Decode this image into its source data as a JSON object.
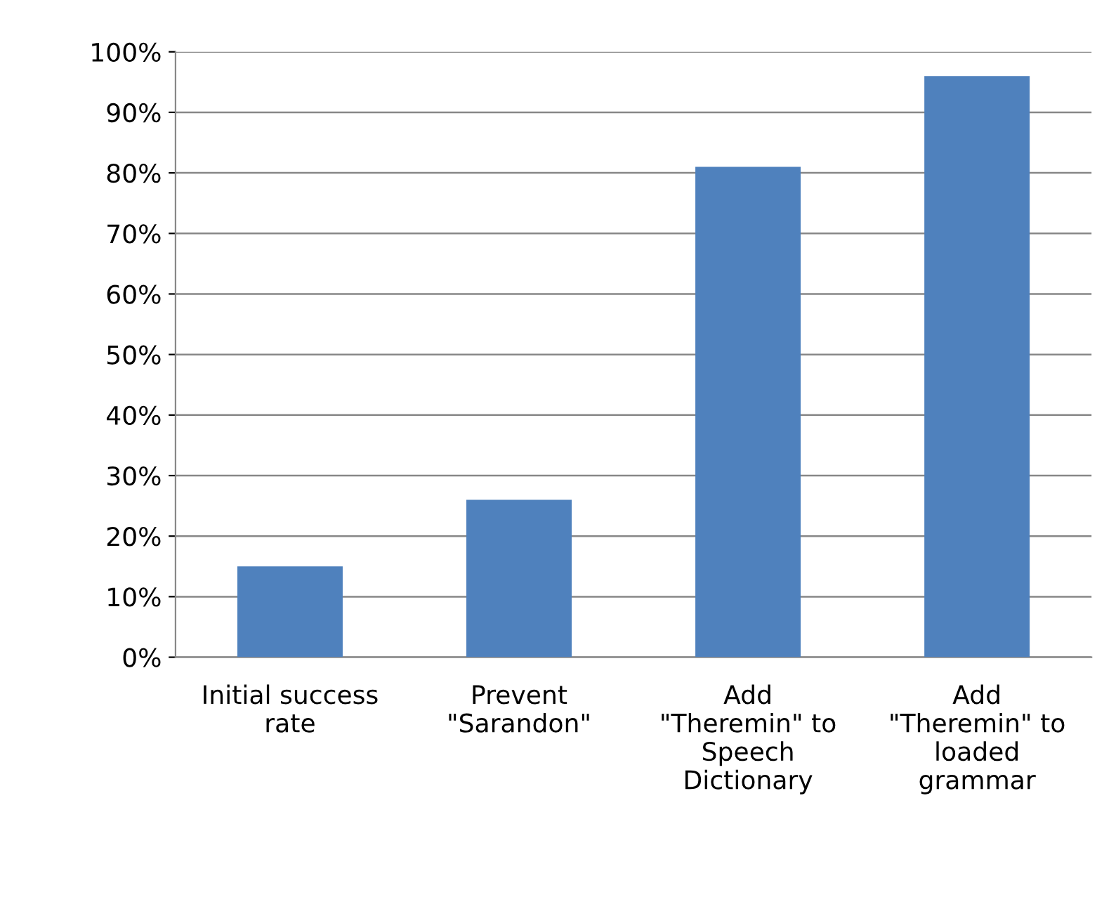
{
  "chart_data": {
    "type": "bar",
    "categories": [
      "Initial success\nrate",
      "Prevent\n\"Sarandon\"",
      "Add\n\"Theremin\" to\nSpeech\nDictionary",
      "Add\n\"Theremin\" to\nloaded\ngrammar"
    ],
    "values": [
      15,
      26,
      81,
      96
    ],
    "color": "#4f81bd",
    "ylim": [
      0,
      100
    ],
    "yticks": [
      {
        "value": 0,
        "label": "0%"
      },
      {
        "value": 10,
        "label": "10%"
      },
      {
        "value": 20,
        "label": "20%"
      },
      {
        "value": 30,
        "label": "30%"
      },
      {
        "value": 40,
        "label": "40%"
      },
      {
        "value": 50,
        "label": "50%"
      },
      {
        "value": 60,
        "label": "60%"
      },
      {
        "value": 70,
        "label": "70%"
      },
      {
        "value": 80,
        "label": "80%"
      },
      {
        "value": 90,
        "label": "90%"
      },
      {
        "value": 100,
        "label": "100%"
      }
    ],
    "grid": "y",
    "legend": false
  }
}
